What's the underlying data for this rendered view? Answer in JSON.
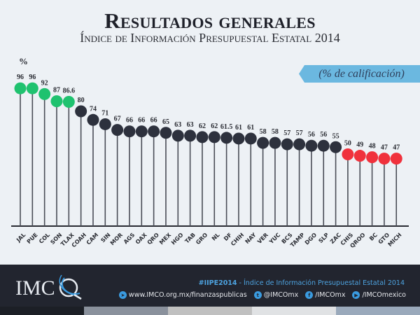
{
  "header": {
    "title": "Resultados generales",
    "subtitle": "Índice de Información Presupuestal Estatal 2014",
    "unit_label": "%",
    "banner": "(% de calificación)"
  },
  "chart_data": {
    "type": "lollipop",
    "title": "Resultados generales",
    "subtitle": "Índice de Información Presupuestal Estatal 2014",
    "ylabel": "%",
    "annotation": "(% de calificación)",
    "ylim": [
      0,
      100
    ],
    "grid": false,
    "categories": [
      "JAL",
      "PUE",
      "COL",
      "SON",
      "TLAX",
      "COAH",
      "CAM",
      "SIN",
      "MOR",
      "AGS",
      "OAX",
      "QRO",
      "MEX",
      "HGO",
      "TAB",
      "GRO",
      "NL",
      "DF",
      "CHIH",
      "NAY",
      "VER",
      "YUC",
      "BCS",
      "TAMP",
      "DGO",
      "SLP",
      "ZAC",
      "CHIS",
      "QROO",
      "BC",
      "GTO",
      "MICH"
    ],
    "values": [
      96,
      96,
      92,
      87,
      86.6,
      80,
      74,
      71,
      67,
      66,
      66,
      66,
      65,
      63,
      63,
      62,
      62,
      61.5,
      61,
      61,
      58,
      58,
      57,
      57,
      56,
      56,
      55,
      50,
      49,
      48,
      47,
      47
    ],
    "labels": [
      "96",
      "96",
      "92",
      "87",
      "86.6",
      "80",
      "74",
      "71",
      "67",
      "66",
      "66",
      "66",
      "65",
      "63",
      "63",
      "62",
      "62",
      "61.5",
      "61",
      "61",
      "58",
      "58",
      "57",
      "57",
      "56",
      "56",
      "55",
      "50",
      "49",
      "48",
      "47",
      "47"
    ],
    "color_groups": [
      {
        "name": "high",
        "color": "#1fc26f",
        "range": "≥ 86.6"
      },
      {
        "name": "middle",
        "color": "#2d313d",
        "range": "55 – 80"
      },
      {
        "name": "low",
        "color": "#f0313c",
        "range": "≤ 50"
      }
    ]
  },
  "colors": {
    "background": "#edf1f5",
    "banner": "#6bb8e0",
    "stem": "#4a4d57",
    "footer": "#22252f",
    "accent": "#4da3e0"
  },
  "footer": {
    "logo_text": "IMCO",
    "hashtag": "#IIPE2014",
    "separator": " - ",
    "tagline": "Índice de Información Presupuestal Estatal 2014",
    "links": [
      {
        "icon": "paper-plane-icon",
        "text": "www.IMCO.org.mx/finanzaspublicas"
      },
      {
        "icon": "twitter-icon",
        "text": "@IMCOmx"
      },
      {
        "icon": "facebook-icon",
        "text": "/IMCOmx"
      },
      {
        "icon": "youtube-icon",
        "text": "/IMCOmexico"
      }
    ],
    "stripe_colors": [
      "#1c1f26",
      "#8a919c",
      "#c0c0c0",
      "#e0e2e4",
      "#9aa9bb"
    ]
  }
}
